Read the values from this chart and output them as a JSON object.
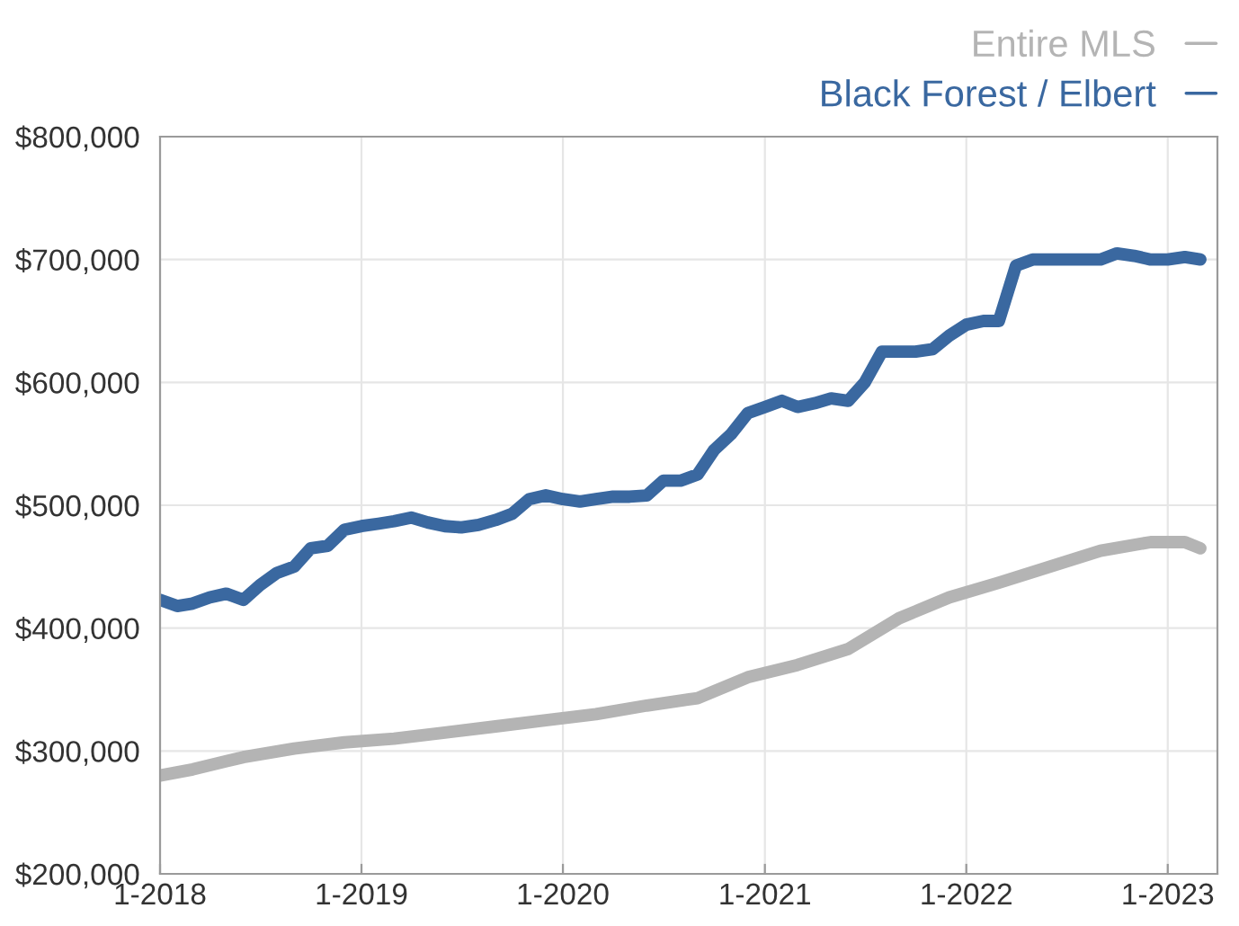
{
  "chart_data": {
    "type": "line",
    "legend": "top right",
    "grid": true,
    "line_style": "solid",
    "xlim": [
      "2018-01",
      "2023-04"
    ],
    "xticks": [
      {
        "value": "2018-01",
        "label": "1-2018"
      },
      {
        "value": "2019-01",
        "label": "1-2019"
      },
      {
        "value": "2020-01",
        "label": "1-2020"
      },
      {
        "value": "2021-01",
        "label": "1-2021"
      },
      {
        "value": "2022-01",
        "label": "1-2022"
      },
      {
        "value": "2023-01",
        "label": "1-2023"
      }
    ],
    "ylim": [
      200000,
      800000
    ],
    "yticks": [
      {
        "value": 200000,
        "label": "$200,000"
      },
      {
        "value": 300000,
        "label": "$300,000"
      },
      {
        "value": 400000,
        "label": "$400,000"
      },
      {
        "value": 500000,
        "label": "$500,000"
      },
      {
        "value": 600000,
        "label": "$600,000"
      },
      {
        "value": 700000,
        "label": "$700,000"
      },
      {
        "value": 800000,
        "label": "$800,000"
      }
    ],
    "series": [
      {
        "name": "Entire MLS",
        "color": "#b4b4b4",
        "x": [
          "2018-01",
          "2018-03",
          "2018-06",
          "2018-09",
          "2018-12",
          "2019-03",
          "2019-06",
          "2019-09",
          "2019-12",
          "2020-03",
          "2020-06",
          "2020-09",
          "2020-12",
          "2021-03",
          "2021-06",
          "2021-09",
          "2021-12",
          "2022-03",
          "2022-06",
          "2022-09",
          "2022-12",
          "2023-02",
          "2023-03"
        ],
        "values": [
          280000,
          285000,
          295000,
          302000,
          307000,
          310000,
          315000,
          320000,
          325000,
          330000,
          337000,
          343000,
          360000,
          370000,
          383000,
          408000,
          425000,
          437000,
          450000,
          463000,
          470000,
          470000,
          465000
        ]
      },
      {
        "name": "Black Forest / Elbert",
        "color": "#3a68a0",
        "x": [
          "2018-01",
          "2018-02",
          "2018-03",
          "2018-04",
          "2018-05",
          "2018-06",
          "2018-07",
          "2018-08",
          "2018-09",
          "2018-10",
          "2018-11",
          "2018-12",
          "2019-01",
          "2019-02",
          "2019-03",
          "2019-04",
          "2019-05",
          "2019-06",
          "2019-07",
          "2019-08",
          "2019-09",
          "2019-10",
          "2019-11",
          "2019-12",
          "2020-01",
          "2020-02",
          "2020-03",
          "2020-04",
          "2020-05",
          "2020-06",
          "2020-07",
          "2020-08",
          "2020-09",
          "2020-10",
          "2020-11",
          "2020-12",
          "2021-01",
          "2021-02",
          "2021-03",
          "2021-04",
          "2021-05",
          "2021-06",
          "2021-07",
          "2021-08",
          "2021-09",
          "2021-10",
          "2021-11",
          "2021-12",
          "2022-01",
          "2022-02",
          "2022-03",
          "2022-04",
          "2022-05",
          "2022-06",
          "2022-07",
          "2022-08",
          "2022-09",
          "2022-10",
          "2022-11",
          "2022-12",
          "2023-01",
          "2023-02",
          "2023-03"
        ],
        "values": [
          423000,
          418000,
          420000,
          425000,
          428000,
          423000,
          435000,
          445000,
          450000,
          465000,
          467000,
          480000,
          483000,
          485000,
          487000,
          490000,
          486000,
          483000,
          482000,
          484000,
          488000,
          493000,
          505000,
          508000,
          505000,
          503000,
          505000,
          507000,
          507000,
          508000,
          520000,
          520000,
          525000,
          545000,
          558000,
          575000,
          580000,
          585000,
          580000,
          583000,
          587000,
          585000,
          600000,
          625000,
          625000,
          625000,
          627000,
          638000,
          647000,
          650000,
          650000,
          695000,
          700000,
          700000,
          700000,
          700000,
          700000,
          705000,
          703000,
          700000,
          700000,
          702000,
          700000
        ]
      }
    ]
  }
}
